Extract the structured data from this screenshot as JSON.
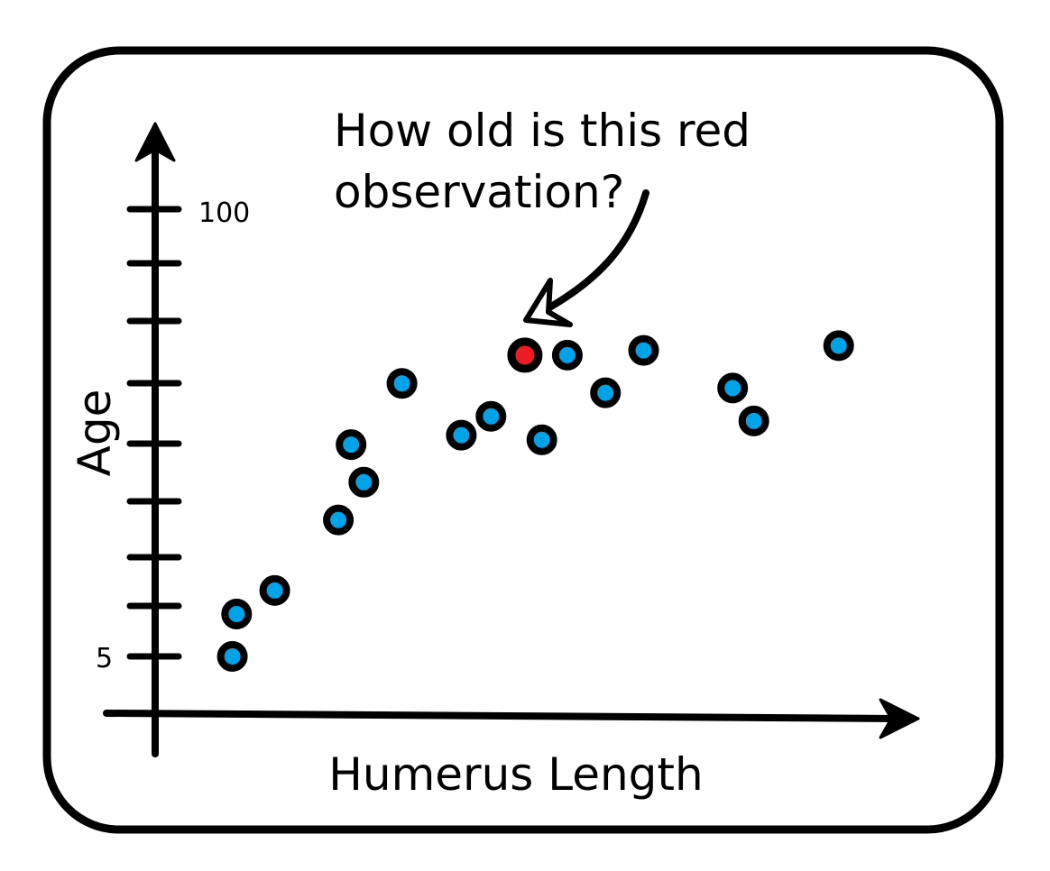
{
  "chart_data": {
    "type": "scatter",
    "title": "",
    "xlabel": "Humerus Length",
    "ylabel": "Age",
    "y_tick_labels": {
      "top": "100",
      "bottom": "5"
    },
    "ylim": [
      5,
      100
    ],
    "grid": false,
    "annotation": {
      "lines": [
        "How old is this red",
        "observation?"
      ]
    },
    "colors": {
      "point_fill": "#00a2e8",
      "highlight_fill": "#ed1c24",
      "outline": "#000000"
    },
    "points": [
      {
        "x": 0.8,
        "y": 5
      },
      {
        "x": 0.9,
        "y": 14
      },
      {
        "x": 1.8,
        "y": 19
      },
      {
        "x": 3.3,
        "y": 34
      },
      {
        "x": 3.6,
        "y": 50
      },
      {
        "x": 3.9,
        "y": 42
      },
      {
        "x": 4.8,
        "y": 63
      },
      {
        "x": 6.2,
        "y": 52
      },
      {
        "x": 6.9,
        "y": 56
      },
      {
        "x": 8.1,
        "y": 51
      },
      {
        "x": 8.7,
        "y": 69
      },
      {
        "x": 9.6,
        "y": 61
      },
      {
        "x": 10.5,
        "y": 70
      },
      {
        "x": 12.6,
        "y": 62
      },
      {
        "x": 13.1,
        "y": 55
      },
      {
        "x": 15.1,
        "y": 71
      }
    ],
    "highlight": {
      "x": 7.7,
      "y": 69
    }
  }
}
